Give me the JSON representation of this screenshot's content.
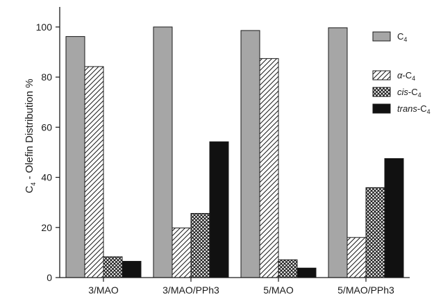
{
  "chart_data": {
    "type": "bar",
    "categories": [
      "3/MAO",
      "3/MAO/PPh3",
      "5/MAO",
      "5/MAO/PPh3"
    ],
    "series": [
      {
        "name": "C4",
        "pattern": "solid-gray",
        "color": "#a6a6a6",
        "values": [
          96.2,
          100.0,
          98.6,
          99.7
        ]
      },
      {
        "name": "α-C4",
        "pattern": "diagonal-hatch",
        "color": "#ffffff",
        "values": [
          84.2,
          19.8,
          87.4,
          16.0
        ]
      },
      {
        "name": "cis-C4",
        "pattern": "crosshatch",
        "color": "#555555",
        "values": [
          8.3,
          25.6,
          7.1,
          35.9
        ]
      },
      {
        "name": "trans-C4",
        "pattern": "solid-black",
        "color": "#111111",
        "values": [
          6.5,
          54.2,
          3.8,
          47.5
        ]
      }
    ],
    "ylim": [
      0,
      108
    ],
    "yticks": [
      0,
      20,
      40,
      60,
      80,
      100
    ],
    "ylabel": "C4 - Olefin Distribution %",
    "xlabel": "",
    "title": "",
    "grid": false,
    "legend_position": "top-right"
  }
}
